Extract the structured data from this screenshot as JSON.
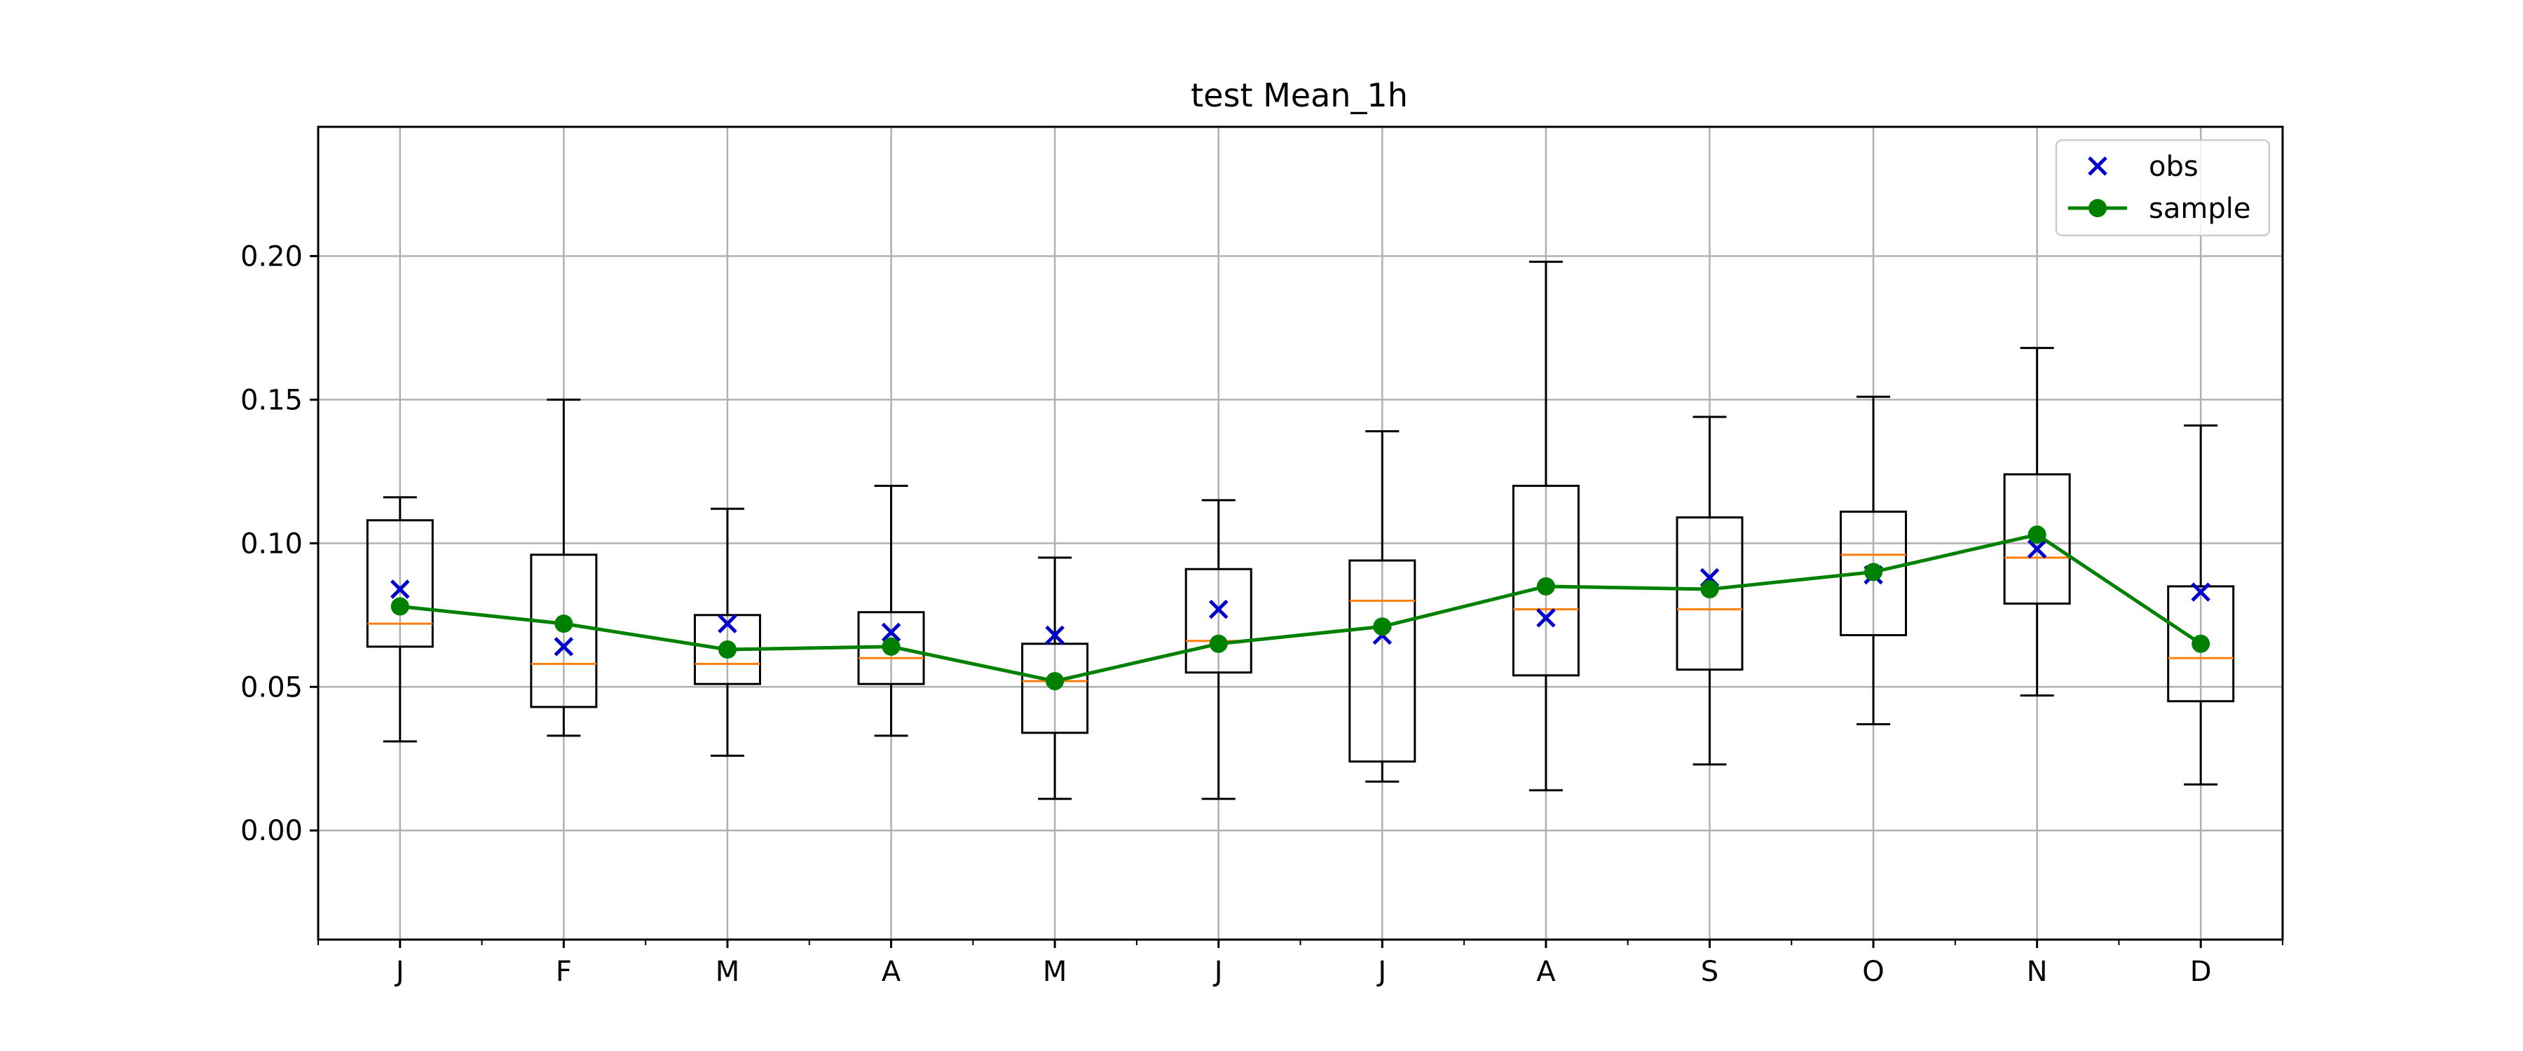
{
  "chart_data": {
    "type": "box",
    "title": "test Mean_1h",
    "xlabel": "",
    "ylabel": "",
    "categories": [
      "J",
      "F",
      "M",
      "A",
      "M",
      "J",
      "J",
      "A",
      "S",
      "O",
      "N",
      "D"
    ],
    "ylim": [
      -0.038,
      0.245
    ],
    "yticks": [
      0.0,
      0.05,
      0.1,
      0.15,
      0.2
    ],
    "ytick_labels": [
      "0.00",
      "0.05",
      "0.10",
      "0.15",
      "0.20"
    ],
    "grid": true,
    "legend": {
      "position": "top-right",
      "entries": [
        "obs",
        "sample"
      ]
    },
    "boxes": [
      {
        "whislo": 0.031,
        "q1": 0.064,
        "med": 0.072,
        "q3": 0.108,
        "whishi": 0.116
      },
      {
        "whislo": 0.033,
        "q1": 0.043,
        "med": 0.058,
        "q3": 0.096,
        "whishi": 0.15
      },
      {
        "whislo": 0.026,
        "q1": 0.051,
        "med": 0.058,
        "q3": 0.075,
        "whishi": 0.112
      },
      {
        "whislo": 0.033,
        "q1": 0.051,
        "med": 0.06,
        "q3": 0.076,
        "whishi": 0.12
      },
      {
        "whislo": 0.011,
        "q1": 0.034,
        "med": 0.052,
        "q3": 0.065,
        "whishi": 0.095
      },
      {
        "whislo": 0.011,
        "q1": 0.055,
        "med": 0.066,
        "q3": 0.091,
        "whishi": 0.115
      },
      {
        "whislo": 0.017,
        "q1": 0.024,
        "med": 0.08,
        "q3": 0.094,
        "whishi": 0.139
      },
      {
        "whislo": 0.014,
        "q1": 0.054,
        "med": 0.077,
        "q3": 0.12,
        "whishi": 0.198
      },
      {
        "whislo": 0.023,
        "q1": 0.056,
        "med": 0.077,
        "q3": 0.109,
        "whishi": 0.144
      },
      {
        "whislo": 0.037,
        "q1": 0.068,
        "med": 0.096,
        "q3": 0.111,
        "whishi": 0.151
      },
      {
        "whislo": 0.047,
        "q1": 0.079,
        "med": 0.095,
        "q3": 0.124,
        "whishi": 0.168
      },
      {
        "whislo": 0.016,
        "q1": 0.045,
        "med": 0.06,
        "q3": 0.085,
        "whishi": 0.141
      }
    ],
    "series": [
      {
        "name": "obs",
        "type": "scatter",
        "marker": "x",
        "color": "#0000cc",
        "values": [
          0.084,
          0.064,
          0.072,
          0.069,
          0.068,
          0.077,
          0.068,
          0.074,
          0.088,
          0.089,
          0.098,
          0.083
        ]
      },
      {
        "name": "sample",
        "type": "line",
        "marker": "o",
        "color": "#008000",
        "values": [
          0.078,
          0.072,
          0.063,
          0.064,
          0.052,
          0.065,
          0.071,
          0.085,
          0.084,
          0.09,
          0.103,
          0.065
        ]
      }
    ],
    "colors": {
      "box": "#000000",
      "median": "#ff7f0e",
      "grid": "#b0b0b0"
    }
  }
}
